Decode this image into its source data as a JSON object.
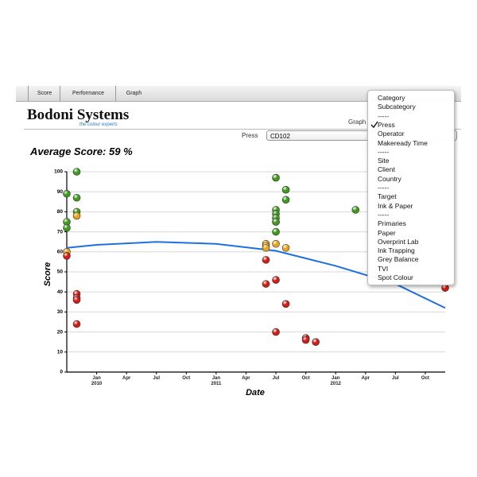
{
  "tabs": [
    "Score",
    "Performance",
    "Graph"
  ],
  "logo": {
    "name": "Bodoni Systems",
    "tagline": "the colour experts"
  },
  "graph_label": "Graph",
  "press": {
    "label": "Press",
    "value": "CD102"
  },
  "menu": {
    "items": [
      "Category",
      "Subcategory",
      "-----",
      "Press",
      "Operator",
      "Makeready Time",
      "-----",
      "Site",
      "Client",
      "Country",
      "-----",
      "Target",
      "Ink & Paper",
      "-----",
      "Primaries",
      "Paper",
      "Overprint Lab",
      "Ink Trapping",
      "Grey Balance",
      "TVI",
      "Spot Colour"
    ]
  },
  "chart_data": {
    "type": "scatter",
    "title": "Average Score: 59 %",
    "x_label": "Date",
    "y_label": "Score",
    "xlim": [
      "2009-10",
      "2012-12"
    ],
    "ylim": [
      0,
      100
    ],
    "xticks": [
      {
        "value": "2010-01",
        "label": "Jan 2010"
      },
      {
        "value": "2010-04",
        "label": "Apr"
      },
      {
        "value": "2010-07",
        "label": "Jul"
      },
      {
        "value": "2010-10",
        "label": "Oct"
      },
      {
        "value": "2011-01",
        "label": "Jan 2011"
      },
      {
        "value": "2011-04",
        "label": "Apr"
      },
      {
        "value": "2011-07",
        "label": "Jul"
      },
      {
        "value": "2011-10",
        "label": "Oct"
      },
      {
        "value": "2012-01",
        "label": "Jan 2012"
      },
      {
        "value": "2012-04",
        "label": "Apr"
      },
      {
        "value": "2012-07",
        "label": "Jul"
      },
      {
        "value": "2012-10",
        "label": "Oct"
      }
    ],
    "yticks": [
      0,
      10,
      20,
      30,
      40,
      50,
      60,
      70,
      80,
      90,
      100
    ],
    "grid": true,
    "series": [
      {
        "color": "#3f9a1c",
        "x": [
          "2009-11",
          "2009-10",
          "2009-11",
          "2009-11",
          "2009-10",
          "2009-10",
          "2011-07",
          "2011-07",
          "2011-07",
          "2011-07",
          "2011-07",
          "2011-07",
          "2011-07",
          "2011-08",
          "2011-08",
          "2012-03"
        ],
        "values": [
          100,
          89,
          87,
          80,
          75,
          72,
          97,
          81,
          79,
          77,
          75,
          70,
          75,
          91,
          86,
          81
        ]
      },
      {
        "color": "#e8a317",
        "x": [
          "2009-11",
          "2009-10",
          "2011-06",
          "2011-06",
          "2011-06",
          "2011-07",
          "2011-08"
        ],
        "values": [
          78,
          60,
          64,
          63,
          62,
          64,
          62
        ]
      },
      {
        "color": "#d41a12",
        "x": [
          "2009-10",
          "2009-11",
          "2009-11",
          "2009-11",
          "2009-11",
          "2011-06",
          "2011-06",
          "2011-07",
          "2011-08",
          "2011-07",
          "2011-10",
          "2011-10",
          "2011-11",
          "2012-12"
        ],
        "values": [
          58,
          39,
          37,
          36,
          24,
          56,
          44,
          46,
          34,
          20,
          17,
          16,
          15,
          42
        ]
      },
      {
        "type": "line",
        "color": "#1e6fe0",
        "x": [
          "2009-10",
          "2010-01",
          "2010-07",
          "2011-01",
          "2011-07",
          "2012-01",
          "2012-07",
          "2012-12"
        ],
        "values": [
          62,
          63.5,
          65,
          64,
          60.5,
          53,
          44,
          32
        ]
      }
    ]
  }
}
